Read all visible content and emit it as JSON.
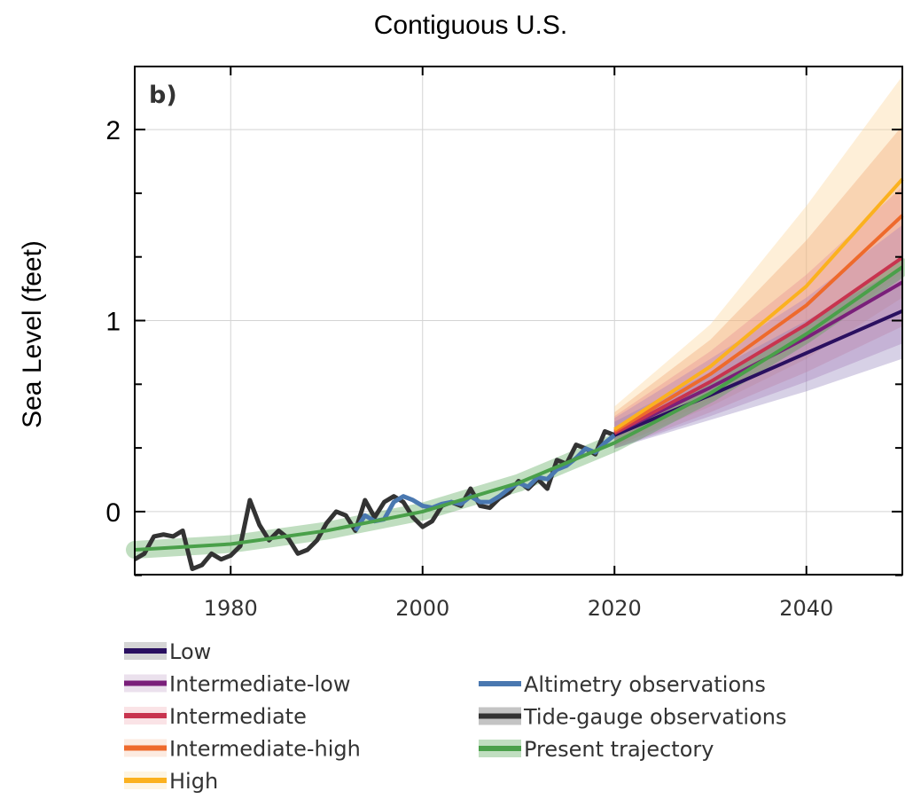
{
  "chart_data": {
    "type": "line",
    "title": "Contiguous U.S.",
    "panel_label": "b)",
    "ylabel": "Sea Level (feet)",
    "xlim": [
      1970,
      2050
    ],
    "ylim": [
      -0.33,
      2.33
    ],
    "xticks": [
      1980,
      2000,
      2020,
      2040
    ],
    "yticks": [
      0,
      1,
      2
    ],
    "grid": true,
    "legend_left": [
      "Low",
      "Intermediate-low",
      "Intermediate",
      "Intermediate-high",
      "High"
    ],
    "legend_right": [
      "Altimetry observations",
      "Tide-gauge observations",
      "Present trajectory"
    ],
    "colors": {
      "low": "#2a1060",
      "intermediate_low": "#7a1f7a",
      "intermediate": "#c8344f",
      "intermediate_high": "#ee6a2c",
      "high": "#fbb11f",
      "altimetry": "#4a78b0",
      "tide_gauge": "#333333",
      "trajectory": "#4aa04a"
    },
    "series": [
      {
        "name": "Tide-gauge observations",
        "x": [
          1970,
          1971,
          1972,
          1973,
          1974,
          1975,
          1976,
          1977,
          1978,
          1979,
          1980,
          1981,
          1982,
          1983,
          1984,
          1985,
          1986,
          1987,
          1988,
          1989,
          1990,
          1991,
          1992,
          1993,
          1994,
          1995,
          1996,
          1997,
          1998,
          1999,
          2000,
          2001,
          2002,
          2003,
          2004,
          2005,
          2006,
          2007,
          2008,
          2009,
          2010,
          2011,
          2012,
          2013,
          2014,
          2015,
          2016,
          2017,
          2018,
          2019,
          2020
        ],
        "y": [
          -0.25,
          -0.22,
          -0.13,
          -0.12,
          -0.13,
          -0.1,
          -0.3,
          -0.28,
          -0.22,
          -0.25,
          -0.23,
          -0.18,
          0.06,
          -0.07,
          -0.15,
          -0.1,
          -0.14,
          -0.22,
          -0.2,
          -0.15,
          -0.06,
          0.0,
          -0.02,
          -0.1,
          0.06,
          -0.03,
          0.05,
          0.08,
          0.05,
          -0.03,
          -0.08,
          -0.05,
          0.03,
          0.05,
          0.03,
          0.12,
          0.03,
          0.02,
          0.07,
          0.1,
          0.16,
          0.12,
          0.17,
          0.12,
          0.27,
          0.25,
          0.35,
          0.33,
          0.3,
          0.42,
          0.4
        ]
      },
      {
        "name": "Altimetry observations",
        "x": [
          1993,
          1994,
          1995,
          1996,
          1997,
          1998,
          1999,
          2000,
          2001,
          2002,
          2003,
          2004,
          2005,
          2006,
          2007,
          2008,
          2009,
          2010,
          2011,
          2012,
          2013,
          2014,
          2015,
          2016,
          2017,
          2018,
          2019,
          2020
        ],
        "y": [
          -0.1,
          -0.02,
          -0.05,
          -0.04,
          0.05,
          0.08,
          0.06,
          0.03,
          0.02,
          0.04,
          0.05,
          0.04,
          0.08,
          0.05,
          0.05,
          0.08,
          0.12,
          0.15,
          0.13,
          0.18,
          0.17,
          0.22,
          0.24,
          0.28,
          0.33,
          0.31,
          0.36,
          0.4
        ]
      },
      {
        "name": "Present trajectory",
        "x": [
          1970,
          1980,
          1990,
          2000,
          2010,
          2020,
          2030,
          2040,
          2050
        ],
        "y": [
          -0.2,
          -0.17,
          -0.1,
          0.0,
          0.15,
          0.36,
          0.62,
          0.93,
          1.28
        ]
      },
      {
        "name": "Low",
        "x": [
          2020,
          2030,
          2040,
          2050
        ],
        "y": [
          0.4,
          0.61,
          0.83,
          1.05
        ]
      },
      {
        "name": "Intermediate-low",
        "x": [
          2020,
          2030,
          2040,
          2050
        ],
        "y": [
          0.41,
          0.65,
          0.91,
          1.2
        ]
      },
      {
        "name": "Intermediate",
        "x": [
          2020,
          2030,
          2040,
          2050
        ],
        "y": [
          0.41,
          0.68,
          0.98,
          1.33
        ]
      },
      {
        "name": "Intermediate-high",
        "x": [
          2020,
          2030,
          2040,
          2050
        ],
        "y": [
          0.42,
          0.72,
          1.08,
          1.55
        ]
      },
      {
        "name": "High",
        "x": [
          2020,
          2030,
          2040,
          2050
        ],
        "y": [
          0.43,
          0.76,
          1.18,
          1.74
        ]
      }
    ],
    "bands": [
      {
        "name": "Low",
        "x": [
          2020,
          2030,
          2040,
          2050
        ],
        "lower": [
          0.33,
          0.48,
          0.63,
          0.8
        ],
        "upper": [
          0.47,
          0.73,
          1.0,
          1.28
        ]
      },
      {
        "name": "Intermediate-low",
        "x": [
          2020,
          2030,
          2040,
          2050
        ],
        "lower": [
          0.33,
          0.5,
          0.68,
          0.88
        ],
        "upper": [
          0.49,
          0.8,
          1.12,
          1.5
        ]
      },
      {
        "name": "Intermediate",
        "x": [
          2020,
          2030,
          2040,
          2050
        ],
        "lower": [
          0.33,
          0.52,
          0.73,
          0.97
        ],
        "upper": [
          0.5,
          0.84,
          1.24,
          1.7
        ]
      },
      {
        "name": "Intermediate-high",
        "x": [
          2020,
          2030,
          2040,
          2050
        ],
        "lower": [
          0.34,
          0.55,
          0.8,
          1.12
        ],
        "upper": [
          0.52,
          0.9,
          1.42,
          2.02
        ]
      },
      {
        "name": "High",
        "x": [
          2020,
          2030,
          2040,
          2050
        ],
        "lower": [
          0.35,
          0.58,
          0.88,
          1.25
        ],
        "upper": [
          0.55,
          0.98,
          1.6,
          2.28
        ]
      }
    ]
  }
}
